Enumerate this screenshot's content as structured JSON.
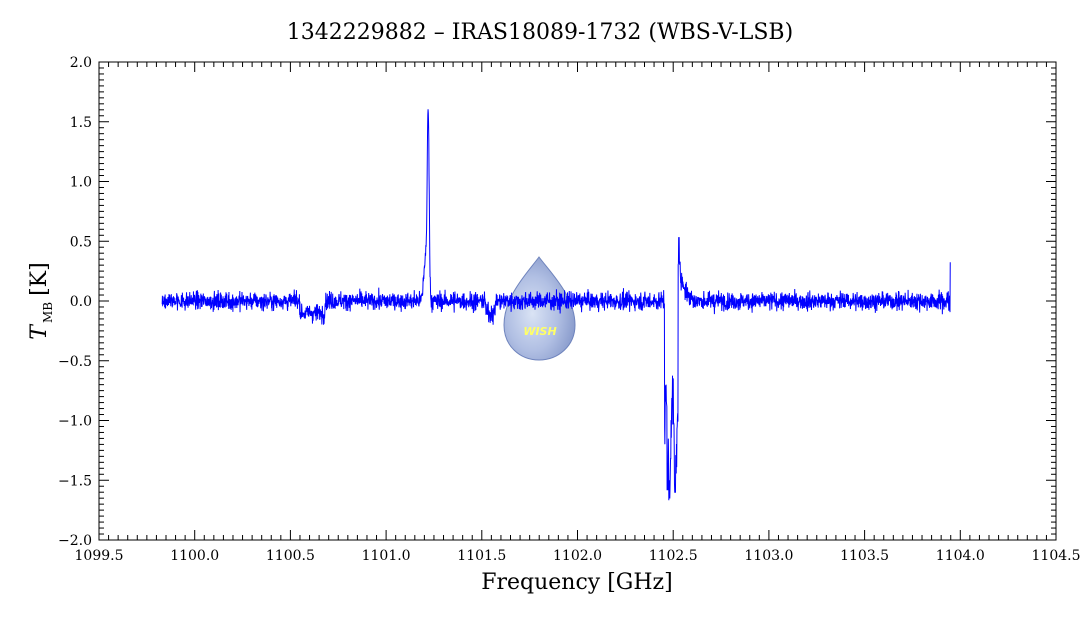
{
  "chart_data": {
    "type": "line",
    "title": "1342229882 – IRAS18089-1732 (WBS-V-LSB)",
    "xlabel": "Frequency [GHz]",
    "ylabel_symbol": "T",
    "ylabel_subscript": "MB",
    "ylabel_unit": "[K]",
    "xlim": [
      1099.5,
      1104.5
    ],
    "ylim": [
      -2.0,
      2.0
    ],
    "x_ticks": [
      1099.5,
      1100.0,
      1100.5,
      1101.0,
      1101.5,
      1102.0,
      1102.5,
      1103.0,
      1103.5,
      1104.0,
      1104.5
    ],
    "x_tick_labels": [
      "1099.5",
      "1100.0",
      "1100.5",
      "1101.0",
      "1101.5",
      "1102.0",
      "1102.5",
      "1103.0",
      "1103.5",
      "1104.0",
      "1104.5"
    ],
    "y_ticks": [
      -2.0,
      -1.5,
      -1.0,
      -0.5,
      0.0,
      0.5,
      1.0,
      1.5,
      2.0
    ],
    "y_tick_labels": [
      "−2.0",
      "−1.5",
      "−1.0",
      "−0.5",
      "0.0",
      "0.5",
      "1.0",
      "1.5",
      "2.0"
    ],
    "grid": false,
    "series": [
      {
        "color": "#0000ff",
        "x_start": 1099.83,
        "x_end": 1103.95,
        "noise_rms": 0.07,
        "features": [
          {
            "x": 1101.22,
            "y": 1.63
          },
          {
            "x": 1101.21,
            "y": 0.45
          },
          {
            "x": 1102.47,
            "y": -1.58
          },
          {
            "x": 1102.51,
            "y": -1.6
          },
          {
            "x": 1102.53,
            "y": 0.53
          },
          {
            "x": 1102.56,
            "y": 0.35
          },
          {
            "x": 1100.62,
            "y": -0.33
          },
          {
            "x": 1101.55,
            "y": -0.32
          },
          {
            "x": 1103.95,
            "y": 0.32
          }
        ]
      }
    ],
    "watermark": {
      "text": "WISH",
      "color": "#ffff66"
    }
  }
}
